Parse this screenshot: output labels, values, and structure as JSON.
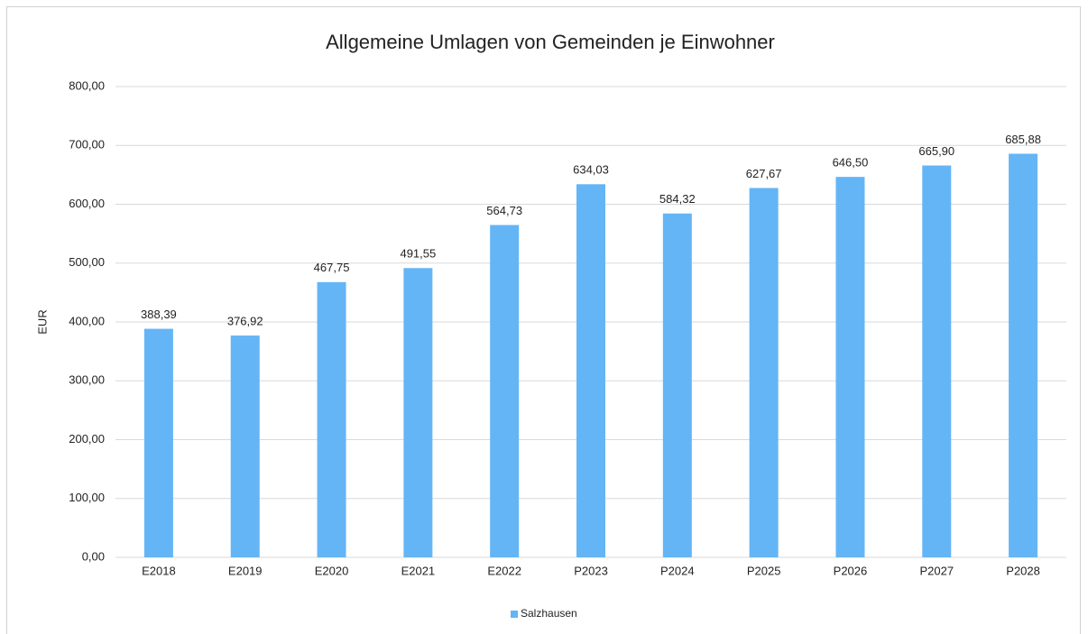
{
  "chart_data": {
    "type": "bar",
    "title": "Allgemeine Umlagen von Gemeinden je Einwohner",
    "y_label": "EUR",
    "categories": [
      "E2018",
      "E2019",
      "E2020",
      "E2021",
      "E2022",
      "P2023",
      "P2024",
      "P2025",
      "P2026",
      "P2027",
      "P2028"
    ],
    "series": [
      {
        "name": "Salzhausen",
        "color": "#64b5f6",
        "values": [
          388.39,
          376.92,
          467.75,
          491.55,
          564.73,
          634.03,
          584.32,
          627.67,
          646.5,
          665.9,
          685.88
        ],
        "value_labels": [
          "388,39",
          "376,92",
          "467,75",
          "491,55",
          "564,73",
          "634,03",
          "584,32",
          "627,67",
          "646,50",
          "665,90",
          "685,88"
        ]
      }
    ],
    "ylim": [
      0,
      800
    ],
    "yticks": [
      {
        "value": 0,
        "label": "0,00"
      },
      {
        "value": 100,
        "label": "100,00"
      },
      {
        "value": 200,
        "label": "200,00"
      },
      {
        "value": 300,
        "label": "300,00"
      },
      {
        "value": 400,
        "label": "400,00"
      },
      {
        "value": 500,
        "label": "500,00"
      },
      {
        "value": 600,
        "label": "600,00"
      },
      {
        "value": 700,
        "label": "700,00"
      },
      {
        "value": 800,
        "label": "800,00"
      }
    ],
    "grid": true,
    "legend": "bottom"
  }
}
